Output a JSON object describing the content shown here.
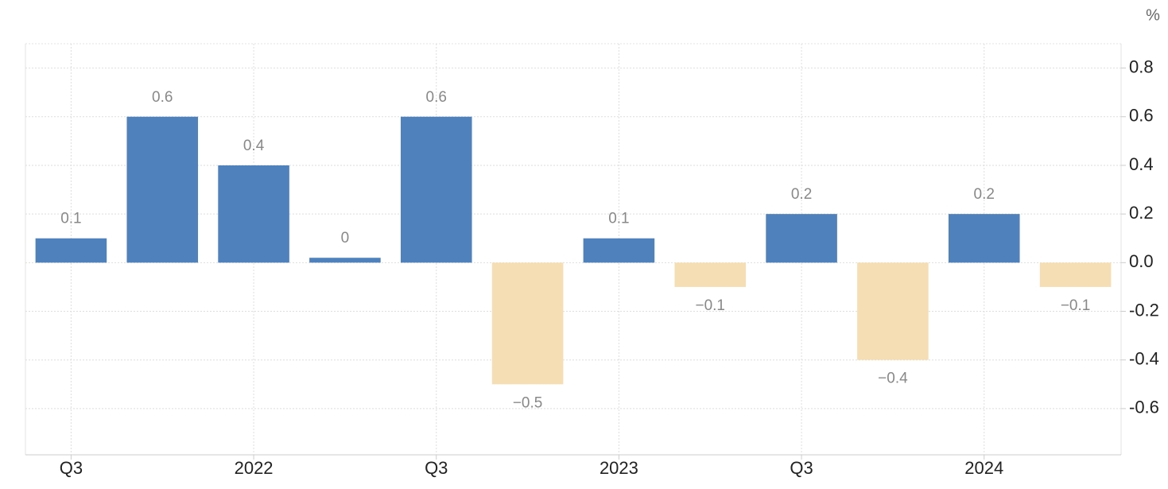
{
  "chart_data": {
    "type": "bar",
    "unit_label": "%",
    "categories": [
      "Q3",
      null,
      "2022",
      null,
      "Q3",
      null,
      "2023",
      null,
      "Q3",
      null,
      "2024",
      null
    ],
    "values": [
      0.1,
      0.6,
      0.4,
      0.02,
      0.6,
      -0.5,
      0.1,
      -0.1,
      0.2,
      -0.4,
      0.2,
      -0.1
    ],
    "value_labels": [
      "0.1",
      "0.6",
      "0.4",
      "0",
      "0.6",
      "−0.5",
      "0.1",
      "−0.1",
      "0.2",
      "−0.4",
      "0.2",
      "−0.1"
    ],
    "positive_color": "#4f81bd",
    "negative_color": "#f5deb3",
    "ylim": [
      -0.79,
      0.9
    ],
    "yticks": [
      0.8,
      0.6,
      0.4,
      0.2,
      {
        "value": 0,
        "label": "0.0"
      },
      -0.2,
      -0.4,
      -0.6
    ],
    "grid": true
  }
}
